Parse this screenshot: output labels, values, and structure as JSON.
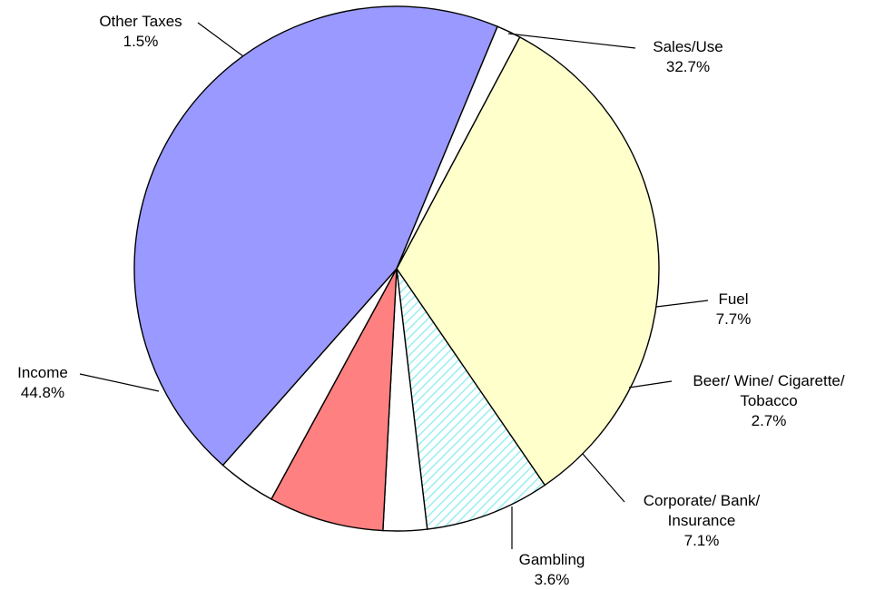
{
  "chart_data": {
    "type": "pie",
    "start_angle_deg": -62.0,
    "direction": "clockwise",
    "slices": [
      {
        "lines": [
          "Sales/Use"
        ],
        "value_label": "32.7%",
        "value": 32.7,
        "color": "#ffffcc",
        "pattern": "none"
      },
      {
        "lines": [
          "Fuel"
        ],
        "value_label": "7.7%",
        "value": 7.7,
        "color": "#ccffff",
        "pattern": "diagonal-hatch"
      },
      {
        "lines": [
          "Beer/ Wine/ Cigarette/",
          "Tobacco"
        ],
        "value_label": "2.7%",
        "value": 2.7,
        "color": "#ffffff",
        "pattern": "none"
      },
      {
        "lines": [
          "Corporate/ Bank/",
          "Insurance"
        ],
        "value_label": "7.1%",
        "value": 7.1,
        "color": "#ff8080",
        "pattern": "none"
      },
      {
        "lines": [
          "Gambling"
        ],
        "value_label": "3.6%",
        "value": 3.6,
        "color": "#ffffff",
        "pattern": "none"
      },
      {
        "lines": [
          "Income"
        ],
        "value_label": "44.8%",
        "value": 44.8,
        "color": "#9999ff",
        "pattern": "none"
      },
      {
        "lines": [
          "Other Taxes"
        ],
        "value_label": "1.5%",
        "value": 1.5,
        "color": "#ffffff",
        "pattern": "none"
      }
    ]
  }
}
